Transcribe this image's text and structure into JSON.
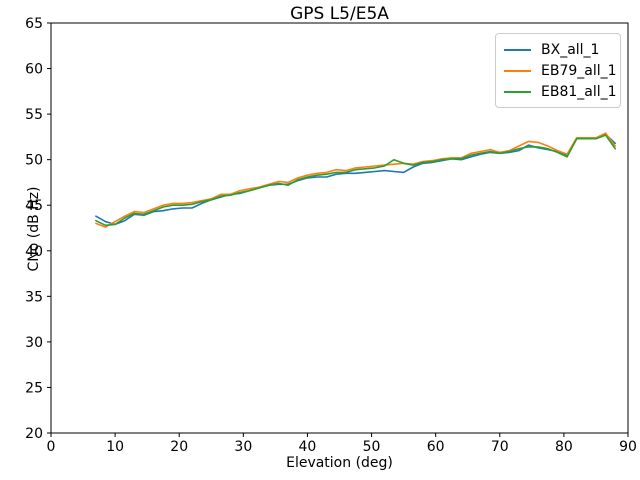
{
  "figure": {
    "title": "GPS L5/E5A",
    "xlabel": "Elevation (deg)",
    "ylabel": "CNo (dB Hz)"
  },
  "chart_data": {
    "type": "line",
    "title": "GPS L5/E5A",
    "xlabel": "Elevation (deg)",
    "ylabel": "CNo (dB Hz)",
    "xlim": [
      0,
      90
    ],
    "ylim": [
      20,
      65
    ],
    "xticks": [
      0,
      10,
      20,
      30,
      40,
      50,
      60,
      70,
      80,
      90
    ],
    "yticks": [
      20,
      25,
      30,
      35,
      40,
      45,
      50,
      55,
      60,
      65
    ],
    "grid": false,
    "legend_position": "upper right",
    "x": [
      7,
      8.5,
      10,
      11.5,
      13,
      14.5,
      16,
      17.5,
      19,
      20.5,
      22,
      23.5,
      25,
      26.5,
      28,
      29.5,
      31,
      32.5,
      34,
      35.5,
      37,
      38.5,
      40,
      41.5,
      43,
      44.5,
      46,
      47.5,
      49,
      50.5,
      52,
      53.5,
      55,
      56.5,
      58,
      59.5,
      61,
      62.5,
      64,
      65.5,
      67,
      68.5,
      70,
      71.5,
      73,
      74.5,
      76,
      77.5,
      79,
      80.5,
      82,
      83.5,
      85,
      86.5,
      88
    ],
    "series": [
      {
        "name": "BX_all_1",
        "color": "#1f77b4",
        "values": [
          43.8,
          43.2,
          42.9,
          43.3,
          44.0,
          43.9,
          44.3,
          44.4,
          44.6,
          44.7,
          44.7,
          45.2,
          45.6,
          45.9,
          46.2,
          46.3,
          46.6,
          46.9,
          47.2,
          47.3,
          47.3,
          47.7,
          48.0,
          48.1,
          48.1,
          48.4,
          48.5,
          48.5,
          48.6,
          48.7,
          48.8,
          48.7,
          48.6,
          49.2,
          49.6,
          49.7,
          49.9,
          50.1,
          50.0,
          50.3,
          50.6,
          50.8,
          50.7,
          50.8,
          51.0,
          51.6,
          51.3,
          51.1,
          50.9,
          50.4,
          52.3,
          52.3,
          52.3,
          52.8,
          51.8
        ]
      },
      {
        "name": "EB79_all_1",
        "color": "#ff7f0e",
        "values": [
          43.0,
          42.6,
          43.2,
          43.8,
          44.3,
          44.2,
          44.6,
          45.0,
          45.2,
          45.2,
          45.3,
          45.5,
          45.7,
          46.2,
          46.2,
          46.6,
          46.8,
          47.0,
          47.3,
          47.6,
          47.5,
          48.0,
          48.3,
          48.5,
          48.6,
          48.9,
          48.8,
          49.1,
          49.2,
          49.3,
          49.4,
          49.5,
          49.6,
          49.5,
          49.8,
          49.9,
          50.1,
          50.2,
          50.2,
          50.7,
          50.9,
          51.1,
          50.8,
          51.0,
          51.5,
          52.0,
          51.9,
          51.5,
          51.0,
          50.6,
          52.4,
          52.4,
          52.4,
          52.9,
          51.5
        ]
      },
      {
        "name": "EB81_all_1",
        "color": "#2ca02c",
        "values": [
          43.3,
          42.8,
          42.9,
          43.6,
          44.1,
          44.0,
          44.4,
          44.8,
          45.0,
          45.0,
          45.1,
          45.4,
          45.6,
          46.0,
          46.1,
          46.4,
          46.6,
          46.9,
          47.2,
          47.4,
          47.2,
          47.8,
          48.1,
          48.3,
          48.4,
          48.6,
          48.6,
          48.9,
          49.0,
          49.1,
          49.3,
          50.0,
          49.6,
          49.4,
          49.7,
          49.8,
          50.0,
          50.1,
          50.1,
          50.5,
          50.7,
          50.9,
          50.7,
          50.9,
          51.2,
          51.4,
          51.4,
          51.2,
          50.8,
          50.3,
          52.3,
          52.3,
          52.3,
          52.7,
          51.2
        ]
      }
    ]
  },
  "style": {
    "axis_color": "#000000",
    "background": "#ffffff"
  }
}
